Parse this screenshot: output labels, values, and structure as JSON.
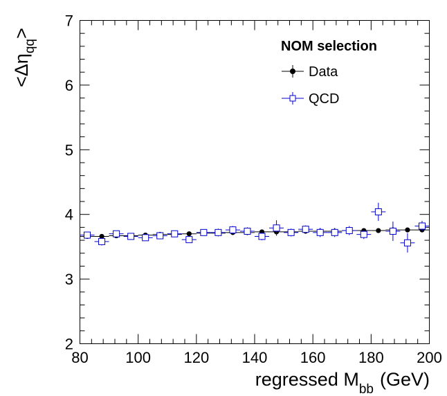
{
  "chart_data": {
    "type": "scatter",
    "xlabel_main": "regressed M",
    "xlabel_sub": "bb",
    "xlabel_unit": "(GeV)",
    "ylabel_open": "<Δη",
    "ylabel_sub": "qq",
    "ylabel_close": ">",
    "xlim": [
      80,
      200
    ],
    "ylim": [
      2,
      7
    ],
    "x_ticks": [
      "80",
      "100",
      "120",
      "140",
      "160",
      "180",
      "200"
    ],
    "y_ticks": [
      "2",
      "3",
      "4",
      "5",
      "6",
      "7"
    ],
    "legend": {
      "title": "NOM selection",
      "placement": "top-right",
      "entries": [
        {
          "label": "Data",
          "marker": "filled-circle",
          "color": "#000000"
        },
        {
          "label": "QCD",
          "marker": "open-square",
          "color": "#0000cc"
        }
      ]
    },
    "series": [
      {
        "name": "Data",
        "color": "#000000",
        "marker": "filled-circle",
        "x": [
          82.5,
          87.5,
          92.5,
          97.5,
          102.5,
          107.5,
          112.5,
          117.5,
          122.5,
          127.5,
          132.5,
          137.5,
          142.5,
          147.5,
          152.5,
          157.5,
          162.5,
          167.5,
          172.5,
          177.5,
          182.5,
          187.5,
          192.5,
          197.5
        ],
        "y": [
          3.66,
          3.66,
          3.67,
          3.67,
          3.68,
          3.69,
          3.69,
          3.7,
          3.71,
          3.71,
          3.72,
          3.72,
          3.73,
          3.73,
          3.73,
          3.74,
          3.74,
          3.74,
          3.75,
          3.75,
          3.75,
          3.76,
          3.76,
          3.76
        ],
        "yerr": [
          0.01,
          0.01,
          0.01,
          0.01,
          0.01,
          0.01,
          0.01,
          0.01,
          0.01,
          0.01,
          0.01,
          0.01,
          0.01,
          0.01,
          0.01,
          0.01,
          0.01,
          0.01,
          0.01,
          0.01,
          0.01,
          0.01,
          0.01,
          0.01
        ]
      },
      {
        "name": "QCD",
        "color": "#0000cc",
        "marker": "open-square",
        "x": [
          82.5,
          87.5,
          92.5,
          97.5,
          102.5,
          107.5,
          112.5,
          117.5,
          122.5,
          127.5,
          132.5,
          137.5,
          142.5,
          147.5,
          152.5,
          157.5,
          162.5,
          167.5,
          172.5,
          177.5,
          182.5,
          187.5,
          192.5,
          197.5
        ],
        "y": [
          3.68,
          3.58,
          3.7,
          3.66,
          3.64,
          3.67,
          3.7,
          3.61,
          3.72,
          3.72,
          3.76,
          3.74,
          3.66,
          3.79,
          3.72,
          3.77,
          3.72,
          3.72,
          3.75,
          3.69,
          4.04,
          3.74,
          3.56,
          3.82
        ],
        "yerr": [
          0.04,
          0.06,
          0.05,
          0.05,
          0.05,
          0.05,
          0.05,
          0.05,
          0.05,
          0.06,
          0.06,
          0.06,
          0.06,
          0.12,
          0.06,
          0.06,
          0.07,
          0.07,
          0.07,
          0.07,
          0.14,
          0.15,
          0.15,
          0.08
        ]
      }
    ]
  }
}
